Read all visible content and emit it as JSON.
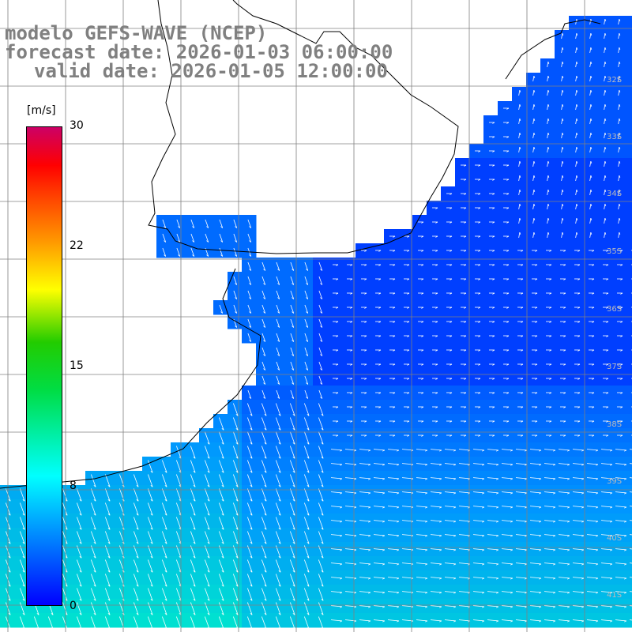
{
  "header": {
    "line1": "modelo GEFS-WAVE (NCEP)",
    "line2": "forecast date: 2026-01-03 06:00:00",
    "line3": "valid date: 2026-01-05 12:00:00"
  },
  "colorbar": {
    "unit": "[m/s]",
    "ticks": [
      "30",
      "22",
      "15",
      "8",
      "0"
    ],
    "colors": [
      "#0000ff",
      "#00aaff",
      "#00ffff",
      "#00dd44",
      "#ffff00",
      "#ff9900",
      "#ff0000",
      "#cc0066"
    ]
  },
  "lat_labels": [
    "32S",
    "33S",
    "34S",
    "35S",
    "36S",
    "37S",
    "38S",
    "39S",
    "40S",
    "41S"
  ],
  "colors": {
    "land": "#ffffff",
    "coast": "#000000",
    "grid": "#808080",
    "arrow": "#ffffff"
  }
}
